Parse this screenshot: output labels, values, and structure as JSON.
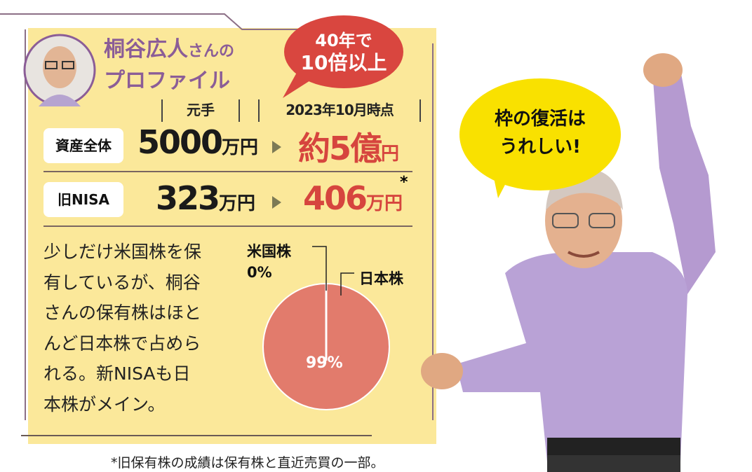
{
  "profile": {
    "name": "桐谷広人",
    "name_suffix": "さんの",
    "title_line2": "プロファイル",
    "badge_line1": "40年で",
    "badge_line2": "10倍以上"
  },
  "columns": {
    "principal": "元手",
    "current": "2023年10月時点"
  },
  "rows": [
    {
      "label": "資産全体",
      "principal": "5000",
      "principal_unit": "万円",
      "current": "約5億",
      "current_unit": "円",
      "mark": ""
    },
    {
      "label": "旧NISA",
      "principal": "323",
      "principal_unit": "万円",
      "current": "406",
      "current_unit": "万円",
      "mark": "*"
    }
  ],
  "description": [
    "少しだけ米国株を保",
    "有しているが、桐谷",
    "さんの保有株はほと",
    "んど日本株で占めら",
    "れる。新NISAも日",
    "本株がメイン。"
  ],
  "chart_data": {
    "type": "pie",
    "categories": [
      "米国株",
      "日本株"
    ],
    "values": [
      0,
      99
    ],
    "labels": [
      "0%",
      "99%"
    ],
    "colors": [
      "#ffffff",
      "#e27b6c"
    ]
  },
  "footnote": "*旧保有株の成績は保有株と直近売買の一部。",
  "speech_bubble": {
    "line1": "枠の復活は",
    "line2": "うれしい!"
  },
  "colors": {
    "panel": "#fbe89a",
    "accent_purple": "#8b5d97",
    "accent_red": "#d6453e",
    "bubble_yellow": "#f9e100"
  }
}
